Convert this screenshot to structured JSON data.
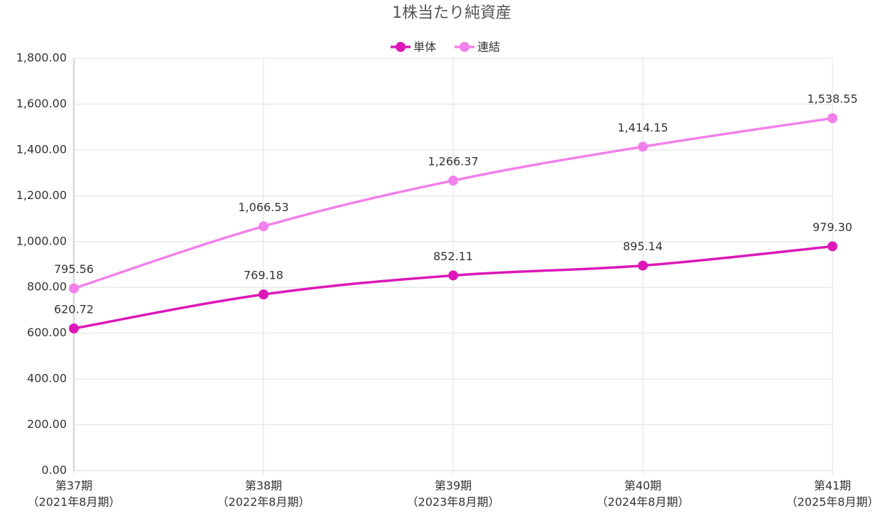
{
  "chart_data": {
    "type": "line",
    "title": "1株当たり純資産",
    "categories": [
      [
        "第37期",
        "（2021年8月期）"
      ],
      [
        "第38期",
        "（2022年8月期）"
      ],
      [
        "第39期",
        "（2023年8月期）"
      ],
      [
        "第40期",
        "（2024年8月期）"
      ],
      [
        "第41期",
        "（2025年8月期）"
      ]
    ],
    "series": [
      {
        "name": "単体",
        "color": "#dc18b8",
        "values": [
          620.72,
          769.18,
          852.11,
          895.14,
          979.3
        ],
        "value_labels": [
          "620.72",
          "769.18",
          "852.11",
          "895.14",
          "979.30"
        ]
      },
      {
        "name": "連結",
        "color": "#f280ea",
        "values": [
          795.56,
          1066.53,
          1266.37,
          1414.15,
          1538.55
        ],
        "value_labels": [
          "795.56",
          "1,066.53",
          "1,266.37",
          "1,414.15",
          "1,538.55"
        ]
      }
    ],
    "ylim": [
      0,
      1800
    ],
    "yticks": [
      {
        "value": 0,
        "label": "0.00"
      },
      {
        "value": 200,
        "label": "200.00"
      },
      {
        "value": 400,
        "label": "400.00"
      },
      {
        "value": 600,
        "label": "600.00"
      },
      {
        "value": 800,
        "label": "800.00"
      },
      {
        "value": 1000,
        "label": "1,000.00"
      },
      {
        "value": 1200,
        "label": "1,200.00"
      },
      {
        "value": 1400,
        "label": "1,400.00"
      },
      {
        "value": 1600,
        "label": "1,600.00"
      },
      {
        "value": 1800,
        "label": "1,800.00"
      }
    ],
    "grid": true
  }
}
